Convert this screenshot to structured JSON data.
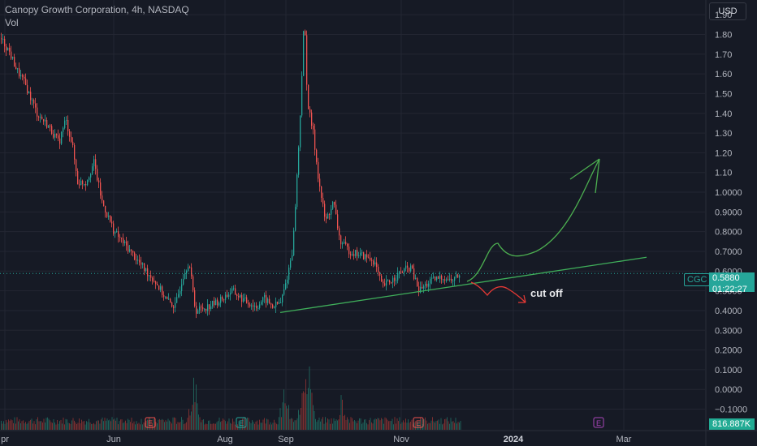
{
  "header": {
    "title": "Canopy Growth Corporation, 4h, NASDAQ",
    "sub": "Vol"
  },
  "currency_button": "USD",
  "price_tag": {
    "symbol": "CGC",
    "price": "0.5880",
    "countdown": "01:22:27"
  },
  "volume_tag": "816.887K",
  "annotation": "cut off",
  "colors": {
    "up": "#26a69a",
    "down": "#ef5350",
    "bg": "#161a25",
    "grid": "#232632",
    "trend": "#3fae5a",
    "arrow_green": "#4caf50",
    "arrow_red": "#e53935"
  },
  "chart_data": {
    "type": "candlestick",
    "title": "Canopy Growth Corporation, 4h, NASDAQ",
    "y_axis": {
      "min": -0.18,
      "max": 1.95,
      "ticks": [
        1.9,
        1.8,
        1.7,
        1.6,
        1.5,
        1.4,
        1.3,
        1.2,
        1.1,
        1.0,
        0.9,
        0.8,
        0.7,
        0.6,
        0.5,
        0.4,
        0.3,
        0.2,
        0.1,
        0.0,
        -0.1
      ],
      "tick_labels": [
        "1.90",
        "1.80",
        "1.70",
        "1.60",
        "1.50",
        "1.40",
        "1.30",
        "1.20",
        "1.10",
        "1.0000",
        "0.9000",
        "0.8000",
        "0.7000",
        "0.6000",
        "0.5000",
        "0.4000",
        "0.3000",
        "0.2000",
        "0.1000",
        "0.0000",
        "−0.1000"
      ]
    },
    "x_axis": {
      "labels": [
        "pr",
        "Jun",
        "Aug",
        "Sep",
        "Nov",
        "2024",
        "Mar"
      ],
      "bold": [
        "2024"
      ]
    },
    "price_path": [
      [
        0,
        1.78
      ],
      [
        10,
        1.72
      ],
      [
        20,
        1.62
      ],
      [
        30,
        1.55
      ],
      [
        45,
        1.4
      ],
      [
        60,
        1.33
      ],
      [
        72,
        1.25
      ],
      [
        80,
        1.37
      ],
      [
        88,
        1.25
      ],
      [
        95,
        1.05
      ],
      [
        105,
        1.05
      ],
      [
        115,
        1.15
      ],
      [
        125,
        0.95
      ],
      [
        140,
        0.8
      ],
      [
        160,
        0.7
      ],
      [
        175,
        0.62
      ],
      [
        190,
        0.55
      ],
      [
        205,
        0.45
      ],
      [
        215,
        0.42
      ],
      [
        225,
        0.58
      ],
      [
        232,
        0.65
      ],
      [
        240,
        0.4
      ],
      [
        255,
        0.42
      ],
      [
        270,
        0.45
      ],
      [
        285,
        0.5
      ],
      [
        300,
        0.45
      ],
      [
        315,
        0.42
      ],
      [
        325,
        0.46
      ],
      [
        335,
        0.42
      ],
      [
        345,
        0.44
      ],
      [
        352,
        0.55
      ],
      [
        360,
        0.72
      ],
      [
        368,
        1.3
      ],
      [
        374,
        1.9
      ],
      [
        378,
        1.45
      ],
      [
        385,
        1.3
      ],
      [
        392,
        1.05
      ],
      [
        400,
        0.85
      ],
      [
        410,
        0.95
      ],
      [
        418,
        0.75
      ],
      [
        430,
        0.7
      ],
      [
        445,
        0.68
      ],
      [
        460,
        0.65
      ],
      [
        470,
        0.52
      ],
      [
        480,
        0.55
      ],
      [
        495,
        0.6
      ],
      [
        505,
        0.62
      ],
      [
        515,
        0.5
      ],
      [
        530,
        0.55
      ],
      [
        545,
        0.57
      ],
      [
        555,
        0.55
      ],
      [
        565,
        0.58
      ]
    ],
    "volume_peaks": [
      [
        238,
        0.25
      ],
      [
        350,
        0.2
      ],
      [
        374,
        0.3
      ],
      [
        380,
        0.4
      ],
      [
        420,
        0.15
      ],
      [
        160,
        0.05
      ]
    ],
    "earnings_markers": [
      {
        "label": "E",
        "date_label": "Jun",
        "color": "#ef5350"
      },
      {
        "label": "E",
        "date_label": "Aug",
        "color": "#26a69a"
      },
      {
        "label": "E",
        "date_label": "Nov",
        "color": "#ef5350"
      },
      {
        "label": "E",
        "date_label": "2024",
        "color": "#ab47bc"
      }
    ],
    "last_price": 0.588,
    "trendline": {
      "from": [
        "Aug",
        0.39
      ],
      "to": [
        "Mar",
        0.67
      ]
    },
    "grid": true
  }
}
